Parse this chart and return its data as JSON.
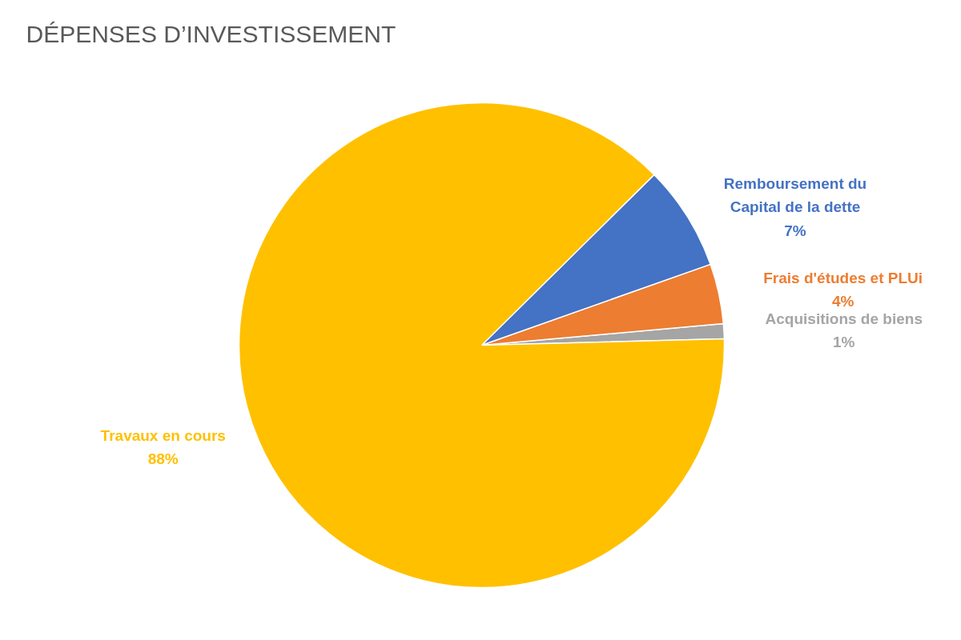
{
  "chart_data": {
    "type": "pie",
    "title": "DÉPENSES D’INVESTISSEMENT",
    "categories": [
      "Acquisitions de biens",
      "Frais d'études et PLUi",
      "Remboursement du Capital de la dette",
      "Travaux en cours"
    ],
    "values": [
      1,
      4,
      7,
      88
    ],
    "value_labels": [
      "1%",
      "4%",
      "7%",
      "88%"
    ],
    "colors": [
      "#a5a5a5",
      "#ed7d31",
      "#4472c4",
      "#ffc000"
    ]
  }
}
